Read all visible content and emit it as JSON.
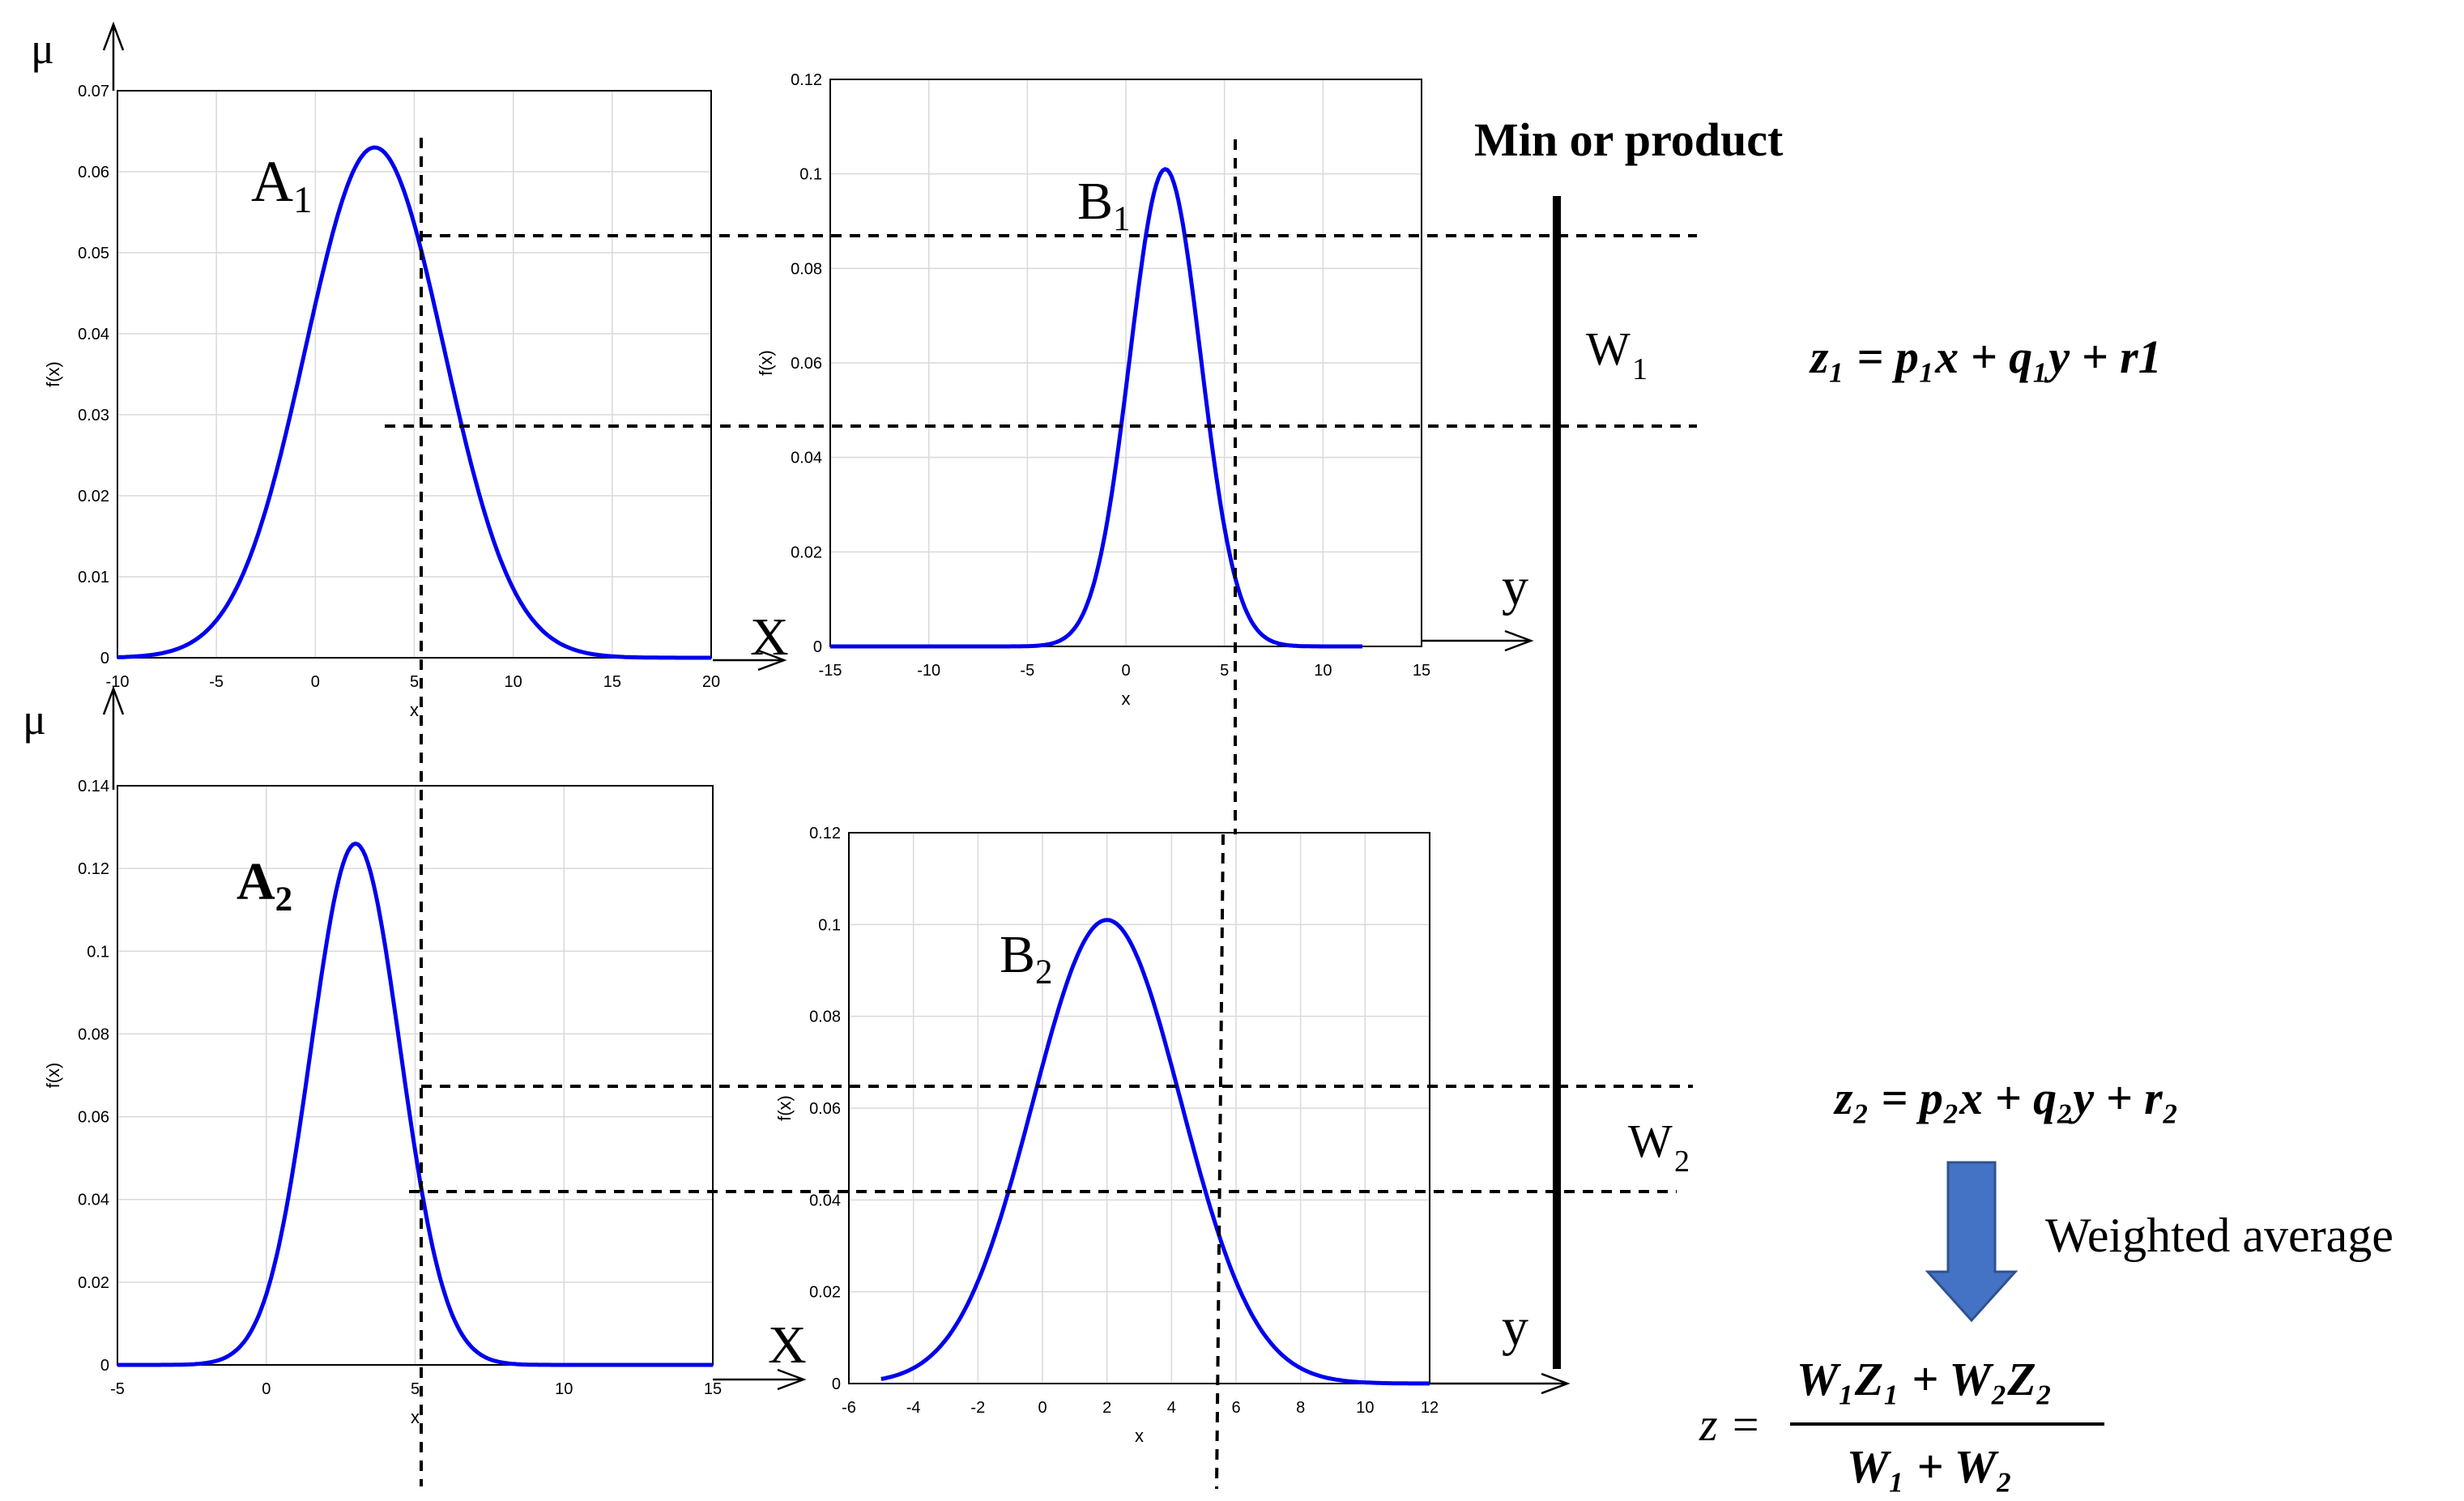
{
  "plots": [
    {
      "id": "a1",
      "ylabel": "f(x)",
      "xlabel": "x",
      "xticks": [
        "-10",
        "-5",
        "0",
        "5",
        "10",
        "15",
        "20"
      ],
      "yticks": [
        "0",
        "0.01",
        "0.02",
        "0.03",
        "0.04",
        "0.05",
        "0.06",
        "0.07"
      ],
      "curve_label": "A",
      "curve_sub": "1",
      "color": "#0000ee",
      "curve": {
        "kind": "gaussian",
        "mean": 3,
        "sigma": 3.5,
        "peak": 0.063,
        "xrange": [
          -10,
          20
        ]
      },
      "xlim": [
        -10,
        20
      ],
      "ylim": [
        0,
        0.07
      ]
    },
    {
      "id": "b1",
      "ylabel": "f(x)",
      "xlabel": "x",
      "xticks": [
        "-15",
        "-10",
        "-5",
        "0",
        "5",
        "10",
        "15"
      ],
      "yticks": [
        "0",
        "0.02",
        "0.04",
        "0.06",
        "0.08",
        "0.1",
        "0.12"
      ],
      "curve_label": "B",
      "curve_sub": "1",
      "color": "#0000ee",
      "curve": {
        "kind": "gaussian",
        "mean": 2,
        "sigma": 1.8,
        "peak": 0.101,
        "xrange": [
          -15,
          12
        ]
      },
      "xlim": [
        -15,
        15
      ],
      "ylim": [
        0,
        0.12
      ]
    },
    {
      "id": "a2",
      "ylabel": "f(x)",
      "xlabel": "x",
      "xticks": [
        "-5",
        "0",
        "5",
        "10",
        "15"
      ],
      "yticks": [
        "0",
        "0.02",
        "0.04",
        "0.06",
        "0.08",
        "0.1",
        "0.12",
        "0.14"
      ],
      "curve_label": "A",
      "curve_sub": "2",
      "color": "#0000ee",
      "curve": {
        "kind": "gaussian",
        "mean": 3,
        "sigma": 1.5,
        "peak": 0.126,
        "xrange": [
          -5,
          15
        ]
      },
      "xlim": [
        -5,
        15
      ],
      "ylim": [
        0,
        0.14
      ]
    },
    {
      "id": "b2",
      "ylabel": "f(x)",
      "xlabel": "x",
      "xticks": [
        "-6",
        "-4",
        "-2",
        "0",
        "2",
        "4",
        "6",
        "8",
        "10",
        "12"
      ],
      "yticks": [
        "0",
        "0.02",
        "0.04",
        "0.06",
        "0.08",
        "0.1",
        "0.12"
      ],
      "curve_label": "B",
      "curve_sub": "2",
      "color": "#0000ee",
      "curve": {
        "kind": "gaussian",
        "mean": 2,
        "sigma": 2.3,
        "peak": 0.101,
        "xrange": [
          -5,
          12
        ]
      },
      "xlim": [
        -6,
        12
      ],
      "ylim": [
        0,
        0.12
      ]
    }
  ],
  "labels": {
    "mu": "μ",
    "x_axis": "X",
    "y_axis": "y",
    "w": "W",
    "sub1": "1",
    "sub2": "2",
    "min_or_product": "Min or product",
    "weighted_average": "Weighted average"
  },
  "equations": {
    "z1": "z₁ = p₁x + q₁y + r1",
    "z2": "z₂ = p₂x + q₂y + r₂",
    "z_lhs": "z =",
    "z_num": "W₁Z₁ + W₂Z₂",
    "z_den": "W₁ + W₂"
  },
  "colors": {
    "curve": "#0000ee",
    "arrow_fill": "#4472c4",
    "arrow_stroke": "#2f528f"
  }
}
